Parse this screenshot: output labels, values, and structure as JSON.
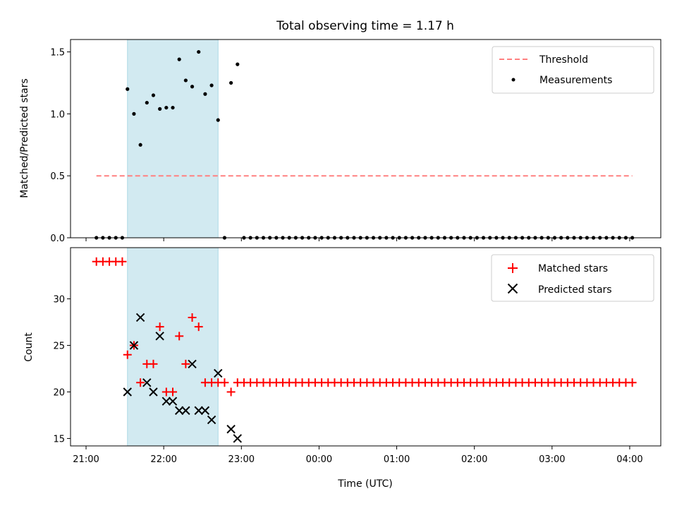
{
  "title": "Total observing time = 1.17 h",
  "xlabel": "Time (UTC)",
  "x_ticks": [
    "21:00",
    "22:00",
    "23:00",
    "00:00",
    "01:00",
    "02:00",
    "03:00",
    "04:00"
  ],
  "highlight_band": {
    "start": "21:32",
    "end": "22:42",
    "color": "#add8e6"
  },
  "colors": {
    "threshold": "#ff8080",
    "measurement": "#000000",
    "matched": "#ff0000",
    "predicted": "#000000"
  },
  "chart_data": [
    {
      "type": "scatter",
      "ylabel": "Matched/Predicted stars",
      "ylim": [
        0,
        1.6
      ],
      "y_ticks": [
        "0.0",
        "0.5",
        "1.0",
        "1.5"
      ],
      "legend": {
        "placement": "top-right",
        "entries": [
          "Threshold",
          "Measurements"
        ]
      },
      "threshold": {
        "name": "Threshold",
        "value": 0.5,
        "x_range": [
          "21:08",
          "04:02"
        ]
      },
      "measurements": {
        "name": "Measurements",
        "x": [
          "21:08",
          "21:13",
          "21:18",
          "21:23",
          "21:28",
          "21:32",
          "21:37",
          "21:42",
          "21:47",
          "21:52",
          "21:57",
          "22:02",
          "22:07",
          "22:12",
          "22:17",
          "22:22",
          "22:27",
          "22:32",
          "22:37",
          "22:42",
          "22:47",
          "22:52",
          "22:57",
          "23:02",
          "23:07",
          "23:12",
          "23:17",
          "23:22",
          "23:27",
          "23:32",
          "23:37",
          "23:42",
          "23:47",
          "23:52",
          "23:57",
          "00:02",
          "00:07",
          "00:12",
          "00:17",
          "00:22",
          "00:27",
          "00:32",
          "00:37",
          "00:42",
          "00:47",
          "00:52",
          "00:57",
          "01:02",
          "01:07",
          "01:12",
          "01:17",
          "01:22",
          "01:27",
          "01:32",
          "01:37",
          "01:42",
          "01:47",
          "01:52",
          "01:57",
          "02:02",
          "02:07",
          "02:12",
          "02:17",
          "02:22",
          "02:27",
          "02:32",
          "02:37",
          "02:42",
          "02:47",
          "02:52",
          "02:57",
          "03:02",
          "03:07",
          "03:12",
          "03:17",
          "03:22",
          "03:27",
          "03:32",
          "03:37",
          "03:42",
          "03:47",
          "03:52",
          "03:57",
          "04:02"
        ],
        "y": [
          0,
          0,
          0,
          0,
          0,
          1.2,
          1.0,
          0.75,
          1.09,
          1.15,
          1.04,
          1.05,
          1.05,
          1.44,
          1.27,
          1.22,
          1.5,
          1.16,
          1.23,
          0.95,
          0,
          1.25,
          1.4,
          0,
          0,
          0,
          0,
          0,
          0,
          0,
          0,
          0,
          0,
          0,
          0,
          0,
          0,
          0,
          0,
          0,
          0,
          0,
          0,
          0,
          0,
          0,
          0,
          0,
          0,
          0,
          0,
          0,
          0,
          0,
          0,
          0,
          0,
          0,
          0,
          0,
          0,
          0,
          0,
          0,
          0,
          0,
          0,
          0,
          0,
          0,
          0,
          0,
          0,
          0,
          0,
          0,
          0,
          0,
          0,
          0,
          0,
          0,
          0,
          0
        ]
      }
    },
    {
      "type": "scatter",
      "ylabel": "Count",
      "ylim": [
        14.2,
        35.5
      ],
      "y_ticks": [
        "15",
        "20",
        "25",
        "30"
      ],
      "legend": {
        "placement": "top-right",
        "entries": [
          "Matched stars",
          "Predicted stars"
        ]
      },
      "series": [
        {
          "name": "Matched stars",
          "x": [
            "21:08",
            "21:13",
            "21:18",
            "21:23",
            "21:28",
            "21:32",
            "21:37",
            "21:42",
            "21:47",
            "21:52",
            "21:57",
            "22:02",
            "22:07",
            "22:12",
            "22:17",
            "22:22",
            "22:27",
            "22:32",
            "22:37",
            "22:42",
            "22:47",
            "22:52",
            "22:57",
            "23:02",
            "23:07",
            "23:12",
            "23:17",
            "23:22",
            "23:27",
            "23:32",
            "23:37",
            "23:42",
            "23:47",
            "23:52",
            "23:57",
            "00:02",
            "00:07",
            "00:12",
            "00:17",
            "00:22",
            "00:27",
            "00:32",
            "00:37",
            "00:42",
            "00:47",
            "00:52",
            "00:57",
            "01:02",
            "01:07",
            "01:12",
            "01:17",
            "01:22",
            "01:27",
            "01:32",
            "01:37",
            "01:42",
            "01:47",
            "01:52",
            "01:57",
            "02:02",
            "02:07",
            "02:12",
            "02:17",
            "02:22",
            "02:27",
            "02:32",
            "02:37",
            "02:42",
            "02:47",
            "02:52",
            "02:57",
            "03:02",
            "03:07",
            "03:12",
            "03:17",
            "03:22",
            "03:27",
            "03:32",
            "03:37",
            "03:42",
            "03:47",
            "03:52",
            "03:57",
            "04:02"
          ],
          "y": [
            34,
            34,
            34,
            34,
            34,
            24,
            25,
            21,
            23,
            23,
            27,
            20,
            20,
            26,
            23,
            28,
            27,
            21,
            21,
            21,
            21,
            20,
            21,
            21,
            21,
            21,
            21,
            21,
            21,
            21,
            21,
            21,
            21,
            21,
            21,
            21,
            21,
            21,
            21,
            21,
            21,
            21,
            21,
            21,
            21,
            21,
            21,
            21,
            21,
            21,
            21,
            21,
            21,
            21,
            21,
            21,
            21,
            21,
            21,
            21,
            21,
            21,
            21,
            21,
            21,
            21,
            21,
            21,
            21,
            21,
            21,
            21,
            21,
            21,
            21,
            21,
            21,
            21,
            21,
            21,
            21,
            21,
            21,
            21
          ]
        },
        {
          "name": "Predicted stars",
          "x": [
            "21:32",
            "21:37",
            "21:42",
            "21:47",
            "21:52",
            "21:57",
            "22:02",
            "22:07",
            "22:12",
            "22:17",
            "22:22",
            "22:27",
            "22:32",
            "22:37",
            "22:42",
            "22:52",
            "22:57"
          ],
          "y": [
            20,
            25,
            28,
            21,
            20,
            26,
            19,
            19,
            18,
            18,
            23,
            18,
            18,
            17,
            22,
            16,
            15
          ]
        }
      ]
    }
  ]
}
